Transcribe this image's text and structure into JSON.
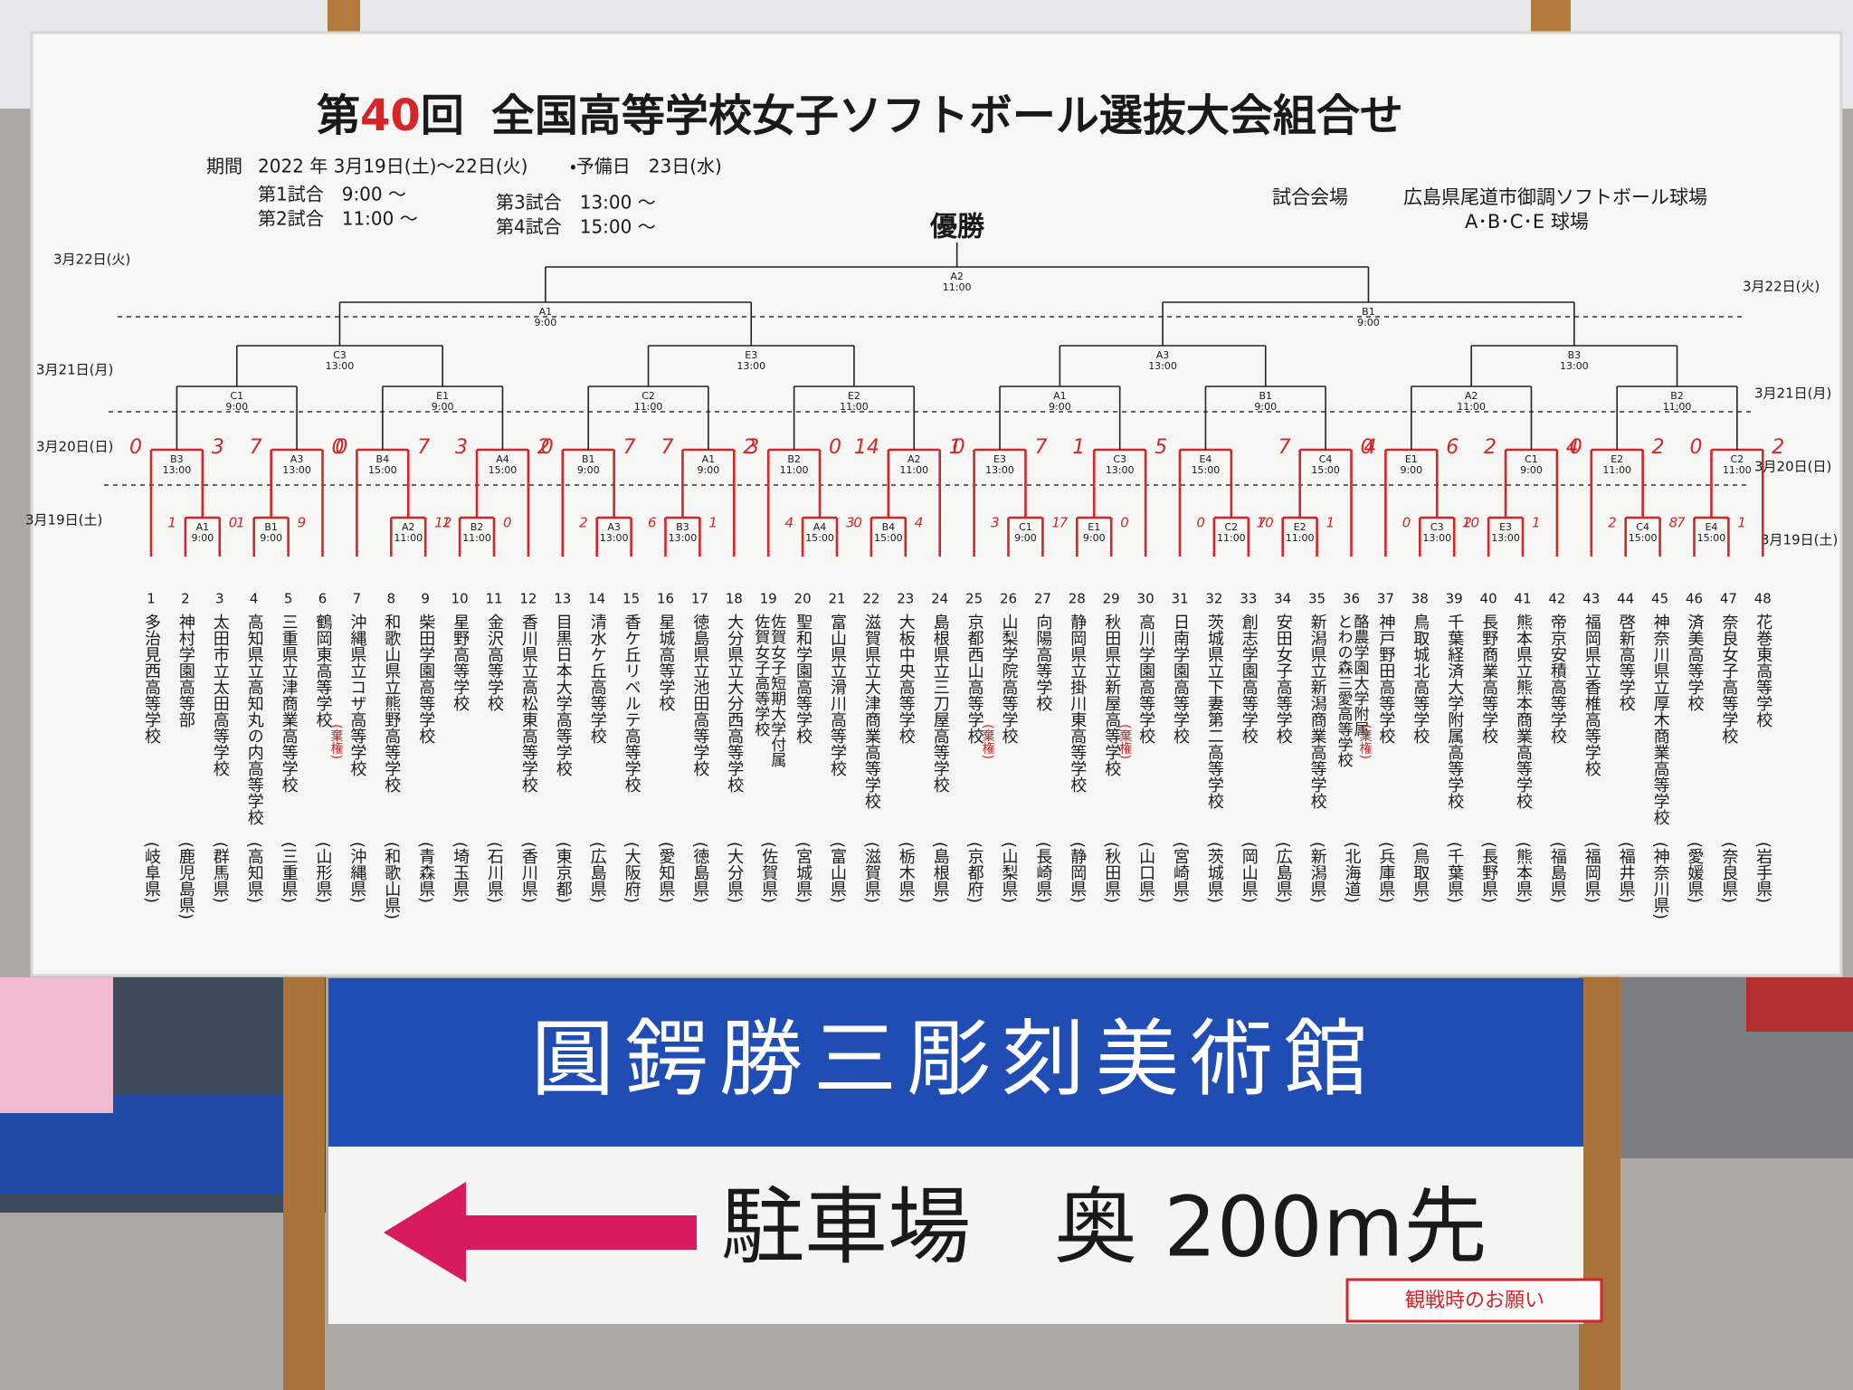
{
  "sign": {
    "title_prefix": "第",
    "title_number": "40",
    "title_suffix": "回",
    "title_main": "全国高等学校女子ソフトボール選抜大会組合せ",
    "period_label": "期間",
    "period": "2022 年 3月19日(土)～22日(火)",
    "reserve": "・予備日　23日(水)",
    "sessions": [
      "第1試合　9:00 ～",
      "第2試合　11:00 ～",
      "第3試合　13:00 ～",
      "第4試合　15:00 ～"
    ],
    "venue_label": "試合会場",
    "venue": "広島県尾道市御調ソフトボール球場",
    "fields": "A･B･C･E 球場",
    "champion": "優勝",
    "dates": [
      "3月22日(火)",
      "3月21日(月)",
      "3月20日(日)",
      "3月19日(土)"
    ]
  },
  "bracket": {
    "final": {
      "code": "A2",
      "time": "11:00"
    },
    "semis": [
      {
        "code": "A1",
        "time": "9:00"
      },
      {
        "code": "B1",
        "time": "9:00"
      }
    ],
    "quarters": [
      {
        "code": "C3",
        "time": "13:00"
      },
      {
        "code": "E3",
        "time": "13:00"
      },
      {
        "code": "A3",
        "time": "13:00"
      },
      {
        "code": "B3",
        "time": "13:00"
      }
    ],
    "groups": [
      {
        "r3": {
          "code": "C1",
          "time": "9:00"
        },
        "r2": [
          {
            "code": "B3",
            "time": "13:00",
            "scores": [
              0,
              3
            ]
          },
          {
            "code": "A3",
            "time": "13:00",
            "scores": [
              7,
              0
            ]
          }
        ],
        "r1": [
          {
            "code": "A1",
            "time": "9:00",
            "scores": [
              1,
              0
            ]
          },
          {
            "code": "B1",
            "time": "9:00",
            "scores": [
              1,
              9
            ]
          }
        ]
      },
      {
        "r3": {
          "code": "E1",
          "time": "9:00"
        },
        "r2": [
          {
            "code": "B4",
            "time": "15:00",
            "scores": [
              0,
              7
            ]
          },
          {
            "code": "A4",
            "time": "15:00",
            "scores": [
              3,
              2
            ]
          }
        ],
        "r1": [
          {
            "code": "A2",
            "time": "11:00",
            "scores": [
              null,
              12
            ]
          },
          {
            "code": "B2",
            "time": "11:00",
            "scores": [
              1,
              0
            ]
          }
        ]
      },
      {
        "r3": {
          "code": "C2",
          "time": "11:00"
        },
        "r2": [
          {
            "code": "B1",
            "time": "9:00",
            "scores": [
              0,
              7
            ]
          },
          {
            "code": "A1",
            "time": "9:00",
            "scores": [
              7,
              2
            ]
          }
        ],
        "r1": [
          {
            "code": "A3",
            "time": "13:00",
            "scores": [
              2,
              null
            ]
          },
          {
            "code": "B3",
            "time": "13:00",
            "scores": [
              6,
              1
            ]
          }
        ]
      },
      {
        "r3": {
          "code": "E2",
          "time": "11:00"
        },
        "r2": [
          {
            "code": "B2",
            "time": "11:00",
            "scores": [
              3,
              0
            ]
          },
          {
            "code": "A2",
            "time": "11:00",
            "scores": [
              14,
              1
            ]
          }
        ],
        "r1": [
          {
            "code": "A4",
            "time": "15:00",
            "scores": [
              4,
              3
            ]
          },
          {
            "code": "B4",
            "time": "15:00",
            "scores": [
              0,
              4
            ]
          }
        ]
      },
      {
        "r3": {
          "code": "A1",
          "time": "9:00"
        },
        "r2": [
          {
            "code": "E3",
            "time": "13:00",
            "scores": [
              0,
              7
            ]
          },
          {
            "code": "C3",
            "time": "13:00",
            "scores": [
              1,
              5
            ]
          }
        ],
        "r1": [
          {
            "code": "C1",
            "time": "9:00",
            "scores": [
              3,
              1
            ]
          },
          {
            "code": "E1",
            "time": "9:00",
            "scores": [
              7,
              0
            ]
          }
        ]
      },
      {
        "r3": {
          "code": "B1",
          "time": "9:00"
        },
        "r2": [
          {
            "code": "E4",
            "time": "15:00"
          },
          {
            "code": "C4",
            "time": "15:00",
            "scores": [
              7,
              0
            ]
          }
        ],
        "r1": [
          {
            "code": "C2",
            "time": "11:00",
            "scores": [
              0,
              7
            ]
          },
          {
            "code": "E2",
            "time": "11:00",
            "scores": [
              10,
              1
            ]
          }
        ]
      },
      {
        "r3": {
          "code": "A2",
          "time": "11:00"
        },
        "r2": [
          {
            "code": "E1",
            "time": "9:00",
            "scores": [
              4,
              6
            ]
          },
          {
            "code": "C1",
            "time": "9:00",
            "scores": [
              2,
              4
            ]
          }
        ],
        "r1": [
          {
            "code": "C3",
            "time": "13:00",
            "scores": [
              0,
              2
            ]
          },
          {
            "code": "E3",
            "time": "13:00",
            "scores": [
              10,
              1
            ]
          }
        ]
      },
      {
        "r3": {
          "code": "B2",
          "time": "11:00"
        },
        "r2": [
          {
            "code": "E2",
            "time": "11:00",
            "scores": [
              0,
              2
            ]
          },
          {
            "code": "C2",
            "time": "11:00",
            "scores": [
              0,
              2
            ]
          }
        ],
        "r1": [
          {
            "code": "C4",
            "time": "15:00",
            "scores": [
              2,
              8
            ]
          },
          {
            "code": "E4",
            "time": "15:00",
            "scores": [
              7,
              1
            ]
          }
        ]
      }
    ]
  },
  "teams": [
    {
      "no": 1,
      "name": "多治見西高等学校",
      "pref": "(岐阜県)"
    },
    {
      "no": 2,
      "name": "神村学園高等部",
      "pref": "(鹿児島県)"
    },
    {
      "no": 3,
      "name": "太田市立太田高等学校",
      "pref": "(群馬県)"
    },
    {
      "no": 4,
      "name": "高知県立高知丸の内高等学校",
      "pref": "(高知県)"
    },
    {
      "no": 5,
      "name": "三重県立津商業高等学校",
      "pref": "(三重県)"
    },
    {
      "no": 6,
      "name": "鶴岡東高等学校",
      "pref": "(山形県)",
      "note": "(棄権)"
    },
    {
      "no": 7,
      "name": "沖縄県立コザ高等学校",
      "pref": "(沖縄県)"
    },
    {
      "no": 8,
      "name": "和歌山県立熊野高等学校",
      "pref": "(和歌山県)"
    },
    {
      "no": 9,
      "name": "柴田学園高等学校",
      "pref": "(青森県)"
    },
    {
      "no": 10,
      "name": "星野高等学校",
      "pref": "(埼玉県)"
    },
    {
      "no": 11,
      "name": "金沢高等学校",
      "pref": "(石川県)"
    },
    {
      "no": 12,
      "name": "香川県立高松東高等学校",
      "pref": "(香川県)"
    },
    {
      "no": 13,
      "name": "目黒日本大学高等学校",
      "pref": "(東京都)"
    },
    {
      "no": 14,
      "name": "清水ケ丘高等学校",
      "pref": "(広島県)"
    },
    {
      "no": 15,
      "name": "香ケ丘リベルテ高等学校",
      "pref": "(大阪府)"
    },
    {
      "no": 16,
      "name": "星城高等学校",
      "pref": "(愛知県)"
    },
    {
      "no": 17,
      "name": "徳島県立池田高等学校",
      "pref": "(徳島県)"
    },
    {
      "no": 18,
      "name": "大分県立大分西高等学校",
      "pref": "(大分県)"
    },
    {
      "no": 19,
      "name": [
        "佐賀女子短期大学付属",
        "佐賀女子高等学校"
      ],
      "pref": "(佐賀県)"
    },
    {
      "no": 20,
      "name": "聖和学園高等学校",
      "pref": "(宮城県)"
    },
    {
      "no": 21,
      "name": "富山県立滑川高等学校",
      "pref": "(富山県)"
    },
    {
      "no": 22,
      "name": "滋賀県立大津商業高等学校",
      "pref": "(滋賀県)"
    },
    {
      "no": 23,
      "name": "大板中央高等学校",
      "pref": "(栃木県)"
    },
    {
      "no": 24,
      "name": "島根県立三刀屋高等学校",
      "pref": "(島根県)"
    },
    {
      "no": 25,
      "name": "京都西山高等学校",
      "pref": "(京都府)",
      "note": "(棄権)"
    },
    {
      "no": 26,
      "name": "山梨学院高等学校",
      "pref": "(山梨県)"
    },
    {
      "no": 27,
      "name": "向陽高等学校",
      "pref": "(長崎県)"
    },
    {
      "no": 28,
      "name": "静岡県立掛川東高等学校",
      "pref": "(静岡県)"
    },
    {
      "no": 29,
      "name": "秋田県立新屋高等学校",
      "pref": "(秋田県)",
      "note": "(棄権)"
    },
    {
      "no": 30,
      "name": "高川学園高等学校",
      "pref": "(山口県)"
    },
    {
      "no": 31,
      "name": "日南学園高等学校",
      "pref": "(宮崎県)"
    },
    {
      "no": 32,
      "name": "茨城県立下妻第二高等学校",
      "pref": "(茨城県)"
    },
    {
      "no": 33,
      "name": "創志学園高等学校",
      "pref": "(岡山県)"
    },
    {
      "no": 34,
      "name": "安田女子高等学校",
      "pref": "(広島県)"
    },
    {
      "no": 35,
      "name": "新潟県立新潟商業高等学校",
      "pref": "(新潟県)"
    },
    {
      "no": 36,
      "name": [
        "酪農学園大学附属",
        "とわの森三愛高等学校"
      ],
      "pref": "(北海道)",
      "note": "(棄権)"
    },
    {
      "no": 37,
      "name": "神戸野田高等学校",
      "pref": "(兵庫県)"
    },
    {
      "no": 38,
      "name": "鳥取城北高等学校",
      "pref": "(鳥取県)"
    },
    {
      "no": 39,
      "name": "千葉経済大学附属高等学校",
      "pref": "(千葉県)"
    },
    {
      "no": 40,
      "name": "長野商業高等学校",
      "pref": "(長野県)"
    },
    {
      "no": 41,
      "name": "熊本県立熊本商業高等学校",
      "pref": "(熊本県)"
    },
    {
      "no": 42,
      "name": "帝京安積高等学校",
      "pref": "(福島県)"
    },
    {
      "no": 43,
      "name": "福岡県立香椎高等学校",
      "pref": "(福岡県)"
    },
    {
      "no": 44,
      "name": "啓新高等学校",
      "pref": "(福井県)"
    },
    {
      "no": 45,
      "name": "神奈川県立厚木商業高等学校",
      "pref": "(神奈川県)"
    },
    {
      "no": 46,
      "name": "済美高等学校",
      "pref": "(愛媛県)"
    },
    {
      "no": 47,
      "name": "奈良女子高等学校",
      "pref": "(奈良県)"
    },
    {
      "no": 48,
      "name": "花巻東高等学校",
      "pref": "(岩手県)"
    }
  ],
  "lower_sign": {
    "museum": "圓鍔勝三彫刻美術館",
    "parking": "駐車場　奥 200m先",
    "notice": "観戦時のお願い"
  }
}
